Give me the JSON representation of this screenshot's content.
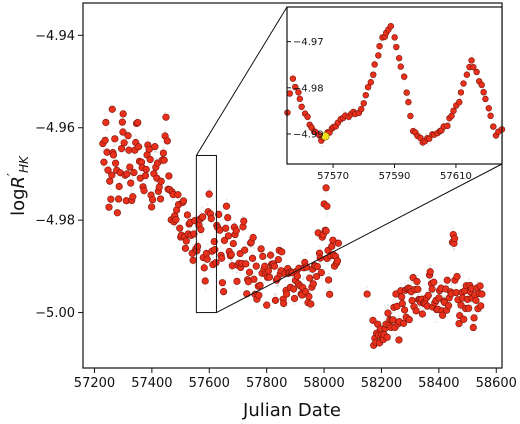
{
  "chart_data": {
    "type": "scatter",
    "xlabel": "Julian Date",
    "ylabel_parts": [
      "log",
      "R",
      "′",
      "HK"
    ],
    "xlim": [
      57160,
      58620
    ],
    "ylim": [
      -5.012,
      -4.933
    ],
    "xticks": [
      57200,
      57400,
      57600,
      57800,
      58000,
      58200,
      58400,
      58600
    ],
    "yticks": [
      -4.94,
      -4.96,
      -4.98,
      -5.0
    ],
    "grid": false,
    "colors": {
      "points": "#e8301c",
      "point_edge": "#7a1408",
      "noise": "#2a2f2f",
      "highlight": "#f0e21a",
      "box": "#111111"
    },
    "zoom_box": {
      "x": [
        57555,
        57625
      ],
      "y": [
        -5.0,
        -4.966
      ]
    },
    "inset": {
      "xlim": [
        57555,
        57625
      ],
      "ylim": [
        -4.9965,
        -4.9625
      ],
      "xticks": [
        57570,
        57590,
        57610
      ],
      "yticks": [
        -4.97,
        -4.98,
        -4.99
      ],
      "highlight_point": {
        "x": 57567.5,
        "y": -4.9905
      },
      "segments": [
        {
          "x": [
            57555,
            57557,
            57560,
            57563,
            57566,
            57568,
            57571,
            57575,
            57579,
            57583,
            57586,
            57589,
            57593,
            57596,
            57599,
            57603,
            57607,
            57611,
            57615,
            57619,
            57623,
            57625
          ],
          "y": [
            -4.985,
            -4.978,
            -4.984,
            -4.989,
            -4.991,
            -4.99,
            -4.988,
            -4.986,
            -4.985,
            -4.977,
            -4.969,
            -4.967,
            -4.978,
            -4.989,
            -4.992,
            -4.99,
            -4.988,
            -4.983,
            -4.974,
            -4.981,
            -4.99,
            -4.989
          ]
        }
      ]
    },
    "main_segments": [
      {
        "x": [
          57230,
          57240,
          57250,
          57260,
          57270,
          57280,
          57290,
          57300,
          57310,
          57320,
          57330,
          57340,
          57350,
          57360,
          57370,
          57380,
          57390,
          57400,
          57410,
          57420,
          57430,
          57440,
          57450,
          57460,
          57470,
          57480,
          57490,
          57500,
          57510,
          57520,
          57530,
          57540,
          57550,
          57560,
          57570,
          57580,
          57590,
          57600,
          57610,
          57620,
          57630,
          57640,
          57650,
          57660,
          57670,
          57680,
          57690,
          57700,
          57710,
          57720,
          57730,
          57740,
          57750,
          57760,
          57770,
          57780,
          57790,
          57800,
          57810,
          57820,
          57830,
          57840,
          57850,
          57860,
          57870,
          57880,
          57890,
          57900,
          57910,
          57920,
          57930,
          57940,
          57950,
          57960,
          57970,
          57980,
          57990,
          58000,
          58010,
          58020,
          58030,
          58040,
          58050
        ],
        "y": [
          -4.967,
          -4.961,
          -4.975,
          -4.97,
          -4.964,
          -4.977,
          -4.968,
          -4.959,
          -4.972,
          -4.962,
          -4.976,
          -4.966,
          -4.958,
          -4.97,
          -4.972,
          -4.966,
          -4.968,
          -4.975,
          -4.964,
          -4.971,
          -4.979,
          -4.967,
          -4.96,
          -4.974,
          -4.977,
          -4.981,
          -4.975,
          -4.983,
          -4.979,
          -4.985,
          -4.978,
          -4.986,
          -4.982,
          -4.988,
          -4.978,
          -4.985,
          -4.991,
          -4.974,
          -4.986,
          -4.99,
          -4.978,
          -4.984,
          -4.992,
          -4.98,
          -4.986,
          -4.991,
          -4.983,
          -4.993,
          -4.988,
          -4.982,
          -4.994,
          -4.989,
          -4.985,
          -4.992,
          -4.996,
          -4.987,
          -4.991,
          -4.995,
          -4.99,
          -4.986,
          -4.994,
          -4.991,
          -4.988,
          -4.996,
          -4.992,
          -4.989,
          -4.994,
          -4.997,
          -4.991,
          -4.995,
          -4.989,
          -4.993,
          -4.996,
          -4.99,
          -4.993,
          -4.986,
          -4.994,
          -4.975,
          -4.988,
          -4.992,
          -4.987,
          -4.99,
          -4.985
        ]
      },
      {
        "x": [
          58170,
          58180,
          58190,
          58200,
          58210,
          58220,
          58230,
          58240,
          58250,
          58260,
          58270,
          58280,
          58290,
          58300,
          58310,
          58320,
          58330,
          58340,
          58350,
          58360,
          58370,
          58380,
          58390,
          58400,
          58410,
          58420,
          58430,
          58440,
          58450,
          58460,
          58470,
          58480,
          58490,
          58500,
          58510,
          58520,
          58530,
          58540,
          58550
        ],
        "y": [
          -5.004,
          -5.007,
          -5.002,
          -5.006,
          -5.001,
          -5.005,
          -4.999,
          -5.004,
          -4.998,
          -5.002,
          -4.997,
          -5.001,
          -4.995,
          -4.999,
          -4.993,
          -4.998,
          -4.995,
          -5.0,
          -4.996,
          -4.999,
          -4.994,
          -4.997,
          -4.995,
          -4.999,
          -4.996,
          -4.998,
          -4.994,
          -4.997,
          -4.985,
          -4.995,
          -4.999,
          -4.996,
          -4.998,
          -4.994,
          -4.997,
          -4.999,
          -4.995,
          -4.998,
          -4.996
        ]
      }
    ],
    "outliers": [
      {
        "x": 58007,
        "y": -4.973
      },
      {
        "x": 58010,
        "y": -4.977
      },
      {
        "x": 58455,
        "y": -4.984
      },
      {
        "x": 58150,
        "y": -4.996
      },
      {
        "x": 57262,
        "y": -4.956
      },
      {
        "x": 57300,
        "y": -4.957
      }
    ]
  }
}
